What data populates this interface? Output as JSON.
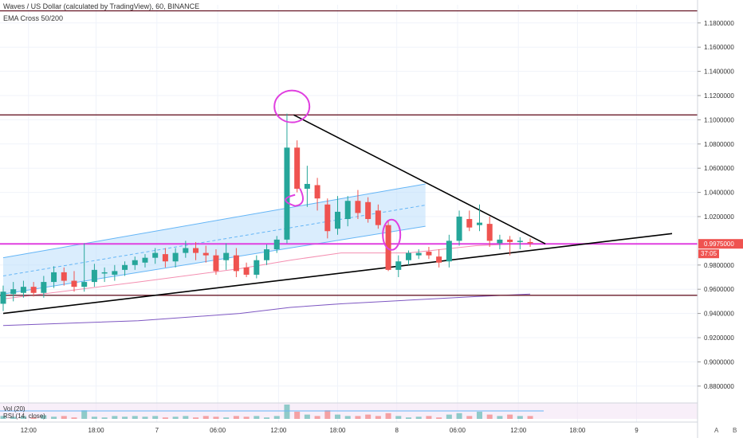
{
  "header": {
    "title": "Waves / US Dollar (calculated by TradingView), 60, BINANCE",
    "study": "EMA Cross 50/200"
  },
  "lower_panes": {
    "volume_label": "Vol (20)",
    "rsi_label": "RSI (14, close)"
  },
  "corner": {
    "a": "A",
    "b": "B"
  },
  "colors": {
    "up": "#26a69a",
    "down": "#ef5350",
    "magenta": "#e040e0",
    "hline": "#6a1b2a",
    "channel_fill": "#bbdefb",
    "channel_line": "#64b5f6",
    "ema50": "#f48fb1",
    "ema200": "#7e57c2",
    "trend": "#000000"
  },
  "chart_data": {
    "type": "candlestick",
    "title": "Waves / US Dollar (calculated by TradingView), 60, BINANCE",
    "ylim": [
      0.87,
      1.195
    ],
    "xlim": [
      0,
      36
    ],
    "y_ticks": [
      "1.1800000",
      "1.1600000",
      "1.1400000",
      "1.1200000",
      "1.1000000",
      "1.0800000",
      "1.0600000",
      "1.0400000",
      "1.0200000",
      "0.9975000",
      "0.9800000",
      "0.9600000",
      "0.9400000",
      "0.9200000",
      "0.9000000",
      "0.8800000"
    ],
    "x_ticks": [
      {
        "label": "12:00",
        "x": 1.5
      },
      {
        "label": "18:00",
        "x": 5.5
      },
      {
        "label": "7",
        "x": 9.1
      },
      {
        "label": "06:00",
        "x": 12.7
      },
      {
        "label": "12:00",
        "x": 16.3
      },
      {
        "label": "18:00",
        "x": 19.8
      },
      {
        "label": "8",
        "x": 23.3
      },
      {
        "label": "06:00",
        "x": 26.9
      },
      {
        "label": "12:00",
        "x": 30.5
      },
      {
        "label": "18:00",
        "x": 34.0
      },
      {
        "label": "9",
        "x": 37.5
      }
    ],
    "price_label": "0.9975000",
    "countdown": "37:05",
    "candles": [
      {
        "x": 0,
        "o": 0.948,
        "h": 0.963,
        "l": 0.942,
        "c": 0.958
      },
      {
        "x": 0.6,
        "o": 0.956,
        "h": 0.966,
        "l": 0.95,
        "c": 0.96
      },
      {
        "x": 1.2,
        "o": 0.957,
        "h": 0.967,
        "l": 0.953,
        "c": 0.962
      },
      {
        "x": 1.8,
        "o": 0.962,
        "h": 0.966,
        "l": 0.954,
        "c": 0.957
      },
      {
        "x": 2.4,
        "o": 0.957,
        "h": 0.971,
        "l": 0.953,
        "c": 0.966
      },
      {
        "x": 3.0,
        "o": 0.966,
        "h": 0.979,
        "l": 0.961,
        "c": 0.974
      },
      {
        "x": 3.6,
        "o": 0.974,
        "h": 0.978,
        "l": 0.963,
        "c": 0.967
      },
      {
        "x": 4.2,
        "o": 0.967,
        "h": 0.975,
        "l": 0.958,
        "c": 0.962
      },
      {
        "x": 4.8,
        "o": 0.962,
        "h": 0.998,
        "l": 0.958,
        "c": 0.966
      },
      {
        "x": 5.4,
        "o": 0.966,
        "h": 0.981,
        "l": 0.962,
        "c": 0.976
      },
      {
        "x": 6.0,
        "o": 0.973,
        "h": 0.978,
        "l": 0.966,
        "c": 0.974
      },
      {
        "x": 6.6,
        "o": 0.972,
        "h": 0.98,
        "l": 0.967,
        "c": 0.975
      },
      {
        "x": 7.2,
        "o": 0.976,
        "h": 0.983,
        "l": 0.971,
        "c": 0.98
      },
      {
        "x": 7.8,
        "o": 0.98,
        "h": 0.987,
        "l": 0.976,
        "c": 0.984
      },
      {
        "x": 8.4,
        "o": 0.982,
        "h": 0.989,
        "l": 0.978,
        "c": 0.986
      },
      {
        "x": 9.0,
        "o": 0.986,
        "h": 0.994,
        "l": 0.981,
        "c": 0.99
      },
      {
        "x": 9.6,
        "o": 0.989,
        "h": 0.994,
        "l": 0.978,
        "c": 0.983
      },
      {
        "x": 10.2,
        "o": 0.983,
        "h": 0.994,
        "l": 0.978,
        "c": 0.99
      },
      {
        "x": 10.8,
        "o": 0.99,
        "h": 1.0,
        "l": 0.986,
        "c": 0.994
      },
      {
        "x": 11.4,
        "o": 0.994,
        "h": 0.999,
        "l": 0.984,
        "c": 0.99
      },
      {
        "x": 12.0,
        "o": 0.99,
        "h": 0.996,
        "l": 0.982,
        "c": 0.988
      },
      {
        "x": 12.6,
        "o": 0.988,
        "h": 0.993,
        "l": 0.972,
        "c": 0.975
      },
      {
        "x": 13.2,
        "o": 0.984,
        "h": 0.998,
        "l": 0.976,
        "c": 0.99
      },
      {
        "x": 13.8,
        "o": 0.988,
        "h": 0.994,
        "l": 0.97,
        "c": 0.975
      },
      {
        "x": 14.4,
        "o": 0.978,
        "h": 0.982,
        "l": 0.97,
        "c": 0.972
      },
      {
        "x": 15.0,
        "o": 0.972,
        "h": 0.988,
        "l": 0.969,
        "c": 0.984
      },
      {
        "x": 15.6,
        "o": 0.984,
        "h": 0.997,
        "l": 0.98,
        "c": 0.993
      },
      {
        "x": 16.2,
        "o": 0.993,
        "h": 1.004,
        "l": 0.99,
        "c": 1.001
      },
      {
        "x": 16.8,
        "o": 1.001,
        "h": 1.105,
        "l": 0.998,
        "c": 1.077
      },
      {
        "x": 17.4,
        "o": 1.077,
        "h": 1.083,
        "l": 1.04,
        "c": 1.043
      },
      {
        "x": 18.0,
        "o": 1.043,
        "h": 1.062,
        "l": 1.028,
        "c": 1.047
      },
      {
        "x": 18.6,
        "o": 1.046,
        "h": 1.052,
        "l": 1.025,
        "c": 1.035
      },
      {
        "x": 19.2,
        "o": 1.03,
        "h": 1.035,
        "l": 1.002,
        "c": 1.008
      },
      {
        "x": 19.8,
        "o": 1.01,
        "h": 1.037,
        "l": 1.005,
        "c": 1.024
      },
      {
        "x": 20.4,
        "o": 1.018,
        "h": 1.037,
        "l": 1.012,
        "c": 1.033
      },
      {
        "x": 21.0,
        "o": 1.033,
        "h": 1.042,
        "l": 1.018,
        "c": 1.023
      },
      {
        "x": 21.6,
        "o": 1.032,
        "h": 1.036,
        "l": 1.015,
        "c": 1.018
      },
      {
        "x": 22.2,
        "o": 1.025,
        "h": 1.03,
        "l": 1.01,
        "c": 1.013
      },
      {
        "x": 22.8,
        "o": 1.013,
        "h": 1.017,
        "l": 0.975,
        "c": 0.976
      },
      {
        "x": 23.4,
        "o": 0.976,
        "h": 0.988,
        "l": 0.97,
        "c": 0.983
      },
      {
        "x": 24.0,
        "o": 0.984,
        "h": 0.992,
        "l": 0.98,
        "c": 0.99
      },
      {
        "x": 24.6,
        "o": 0.988,
        "h": 0.993,
        "l": 0.985,
        "c": 0.99
      },
      {
        "x": 25.2,
        "o": 0.991,
        "h": 0.995,
        "l": 0.985,
        "c": 0.988
      },
      {
        "x": 25.8,
        "o": 0.987,
        "h": 0.993,
        "l": 0.978,
        "c": 0.982
      },
      {
        "x": 26.4,
        "o": 0.983,
        "h": 1.005,
        "l": 0.978,
        "c": 1.0
      },
      {
        "x": 27.0,
        "o": 1.0,
        "h": 1.025,
        "l": 0.996,
        "c": 1.02
      },
      {
        "x": 27.6,
        "o": 1.018,
        "h": 1.025,
        "l": 1.008,
        "c": 1.011
      },
      {
        "x": 28.2,
        "o": 1.013,
        "h": 1.03,
        "l": 1.008,
        "c": 1.015
      },
      {
        "x": 28.8,
        "o": 1.014,
        "h": 1.02,
        "l": 0.995,
        "c": 1.0
      },
      {
        "x": 29.4,
        "o": 0.998,
        "h": 1.005,
        "l": 0.993,
        "c": 1.001
      },
      {
        "x": 30.0,
        "o": 1.001,
        "h": 1.004,
        "l": 0.988,
        "c": 0.999
      },
      {
        "x": 30.6,
        "o": 0.999,
        "h": 1.003,
        "l": 0.993,
        "c": 1.0
      },
      {
        "x": 31.2,
        "o": 0.999,
        "h": 1.002,
        "l": 0.995,
        "c": 0.998
      }
    ],
    "ema50": [
      [
        0,
        0.952
      ],
      [
        8,
        0.966
      ],
      [
        14,
        0.977
      ],
      [
        17,
        0.984
      ],
      [
        20,
        0.99
      ],
      [
        24,
        0.99
      ],
      [
        28,
        0.996
      ],
      [
        31.2,
        0.998
      ]
    ],
    "ema200": [
      [
        0,
        0.93
      ],
      [
        8,
        0.934
      ],
      [
        14,
        0.94
      ],
      [
        17,
        0.945
      ],
      [
        20,
        0.948
      ],
      [
        24,
        0.951
      ],
      [
        28,
        0.954
      ],
      [
        31.2,
        0.956
      ]
    ],
    "hlines": [
      1.19,
      1.104,
      0.9975,
      0.955
    ],
    "trendlines": [
      {
        "from": [
          17.2,
          1.104
        ],
        "to": [
          32.1,
          0.9975
        ]
      },
      {
        "from": [
          0,
          0.94
        ],
        "to": [
          39.6,
          1.006
        ]
      }
    ],
    "channel": {
      "lower": [
        [
          0,
          0.956
        ],
        [
          25,
          1.012
        ]
      ],
      "upper": [
        [
          0,
          0.986
        ],
        [
          25,
          1.047
        ]
      ]
    },
    "volume": [
      0.2,
      0.15,
      0.2,
      0.1,
      0.25,
      0.15,
      0.2,
      0.1,
      0.6,
      0.15,
      0.1,
      0.2,
      0.15,
      0.2,
      0.15,
      0.2,
      0.1,
      0.15,
      0.2,
      0.1,
      0.2,
      0.15,
      0.1,
      0.2,
      0.15,
      0.2,
      0.1,
      0.2,
      1.0,
      0.5,
      0.3,
      0.2,
      0.6,
      0.3,
      0.2,
      0.2,
      0.3,
      0.2,
      0.4,
      0.2,
      0.1,
      0.15,
      0.2,
      0.1,
      0.3,
      0.4,
      0.2,
      0.5,
      0.3,
      0.2,
      0.3,
      0.2,
      0.2
    ]
  }
}
